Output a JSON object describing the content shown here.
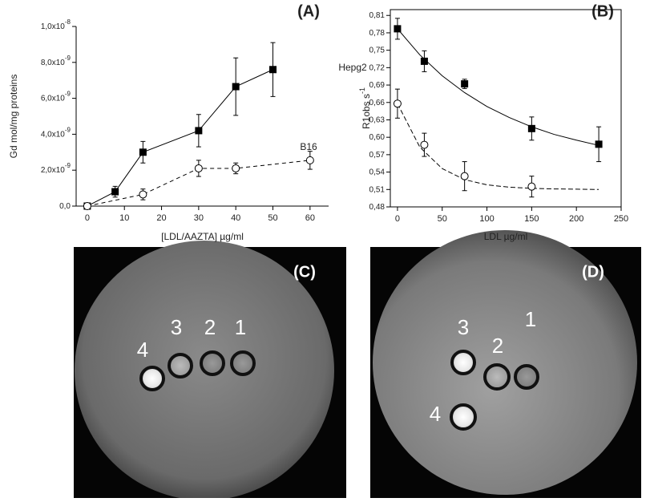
{
  "chart_data": [
    {
      "type": "line",
      "title": "(A)",
      "ylabel": "Gd mol/mg proteins",
      "xlabel": "[LDL/AAZTA] µg/ml",
      "xlim": [
        -3,
        65
      ],
      "xticks": [
        0,
        10,
        20,
        30,
        40,
        50,
        60
      ],
      "ylim": [
        0,
        1e-08
      ],
      "yticks": [
        {
          "value": 0,
          "label": "0,0"
        },
        {
          "value": 2e-09,
          "label": "2,0x10",
          "exponent": "-9"
        },
        {
          "value": 4e-09,
          "label": "4,0x10",
          "exponent": "-9"
        },
        {
          "value": 6e-09,
          "label": "6,0x10",
          "exponent": "-9"
        },
        {
          "value": 8e-09,
          "label": "8,0x10",
          "exponent": "-9"
        },
        {
          "value": 1e-08,
          "label": "1,0x10",
          "exponent": "-8"
        }
      ],
      "series": [
        {
          "name": "Hepg2",
          "color": "#000000",
          "marker": "square",
          "dash": false,
          "x": [
            0,
            7.5,
            15,
            30,
            40,
            50
          ],
          "values": [
            0,
            8e-10,
            3e-09,
            4.2e-09,
            6.65e-09,
            7.6e-09
          ],
          "errors": [
            0,
            3e-10,
            6e-10,
            9e-10,
            1.6e-09,
            1.5e-09
          ]
        },
        {
          "name": "B16",
          "color": "#000000",
          "marker": "circle",
          "dash": true,
          "x": [
            0,
            15,
            30,
            40,
            60
          ],
          "values": [
            0,
            6.5e-10,
            2.1e-09,
            2.1e-09,
            2.55e-09
          ],
          "errors": [
            0,
            3e-10,
            4.5e-10,
            3e-10,
            5e-10
          ]
        }
      ]
    },
    {
      "type": "scatter",
      "title": "(B)",
      "ylabel": "R1obs s",
      "ylabel_exponent": "-1",
      "xlabel": "LDL µg/ml",
      "xlim": [
        -8,
        250
      ],
      "xticks": [
        0,
        50,
        100,
        150,
        200,
        250
      ],
      "ylim": [
        0.48,
        0.82
      ],
      "yticks": [
        {
          "value": 0.48,
          "label": "0,48"
        },
        {
          "value": 0.51,
          "label": "0,51"
        },
        {
          "value": 0.54,
          "label": "0,54"
        },
        {
          "value": 0.57,
          "label": "0,57"
        },
        {
          "value": 0.6,
          "label": "0,60"
        },
        {
          "value": 0.63,
          "label": "0,63"
        },
        {
          "value": 0.66,
          "label": "0,66"
        },
        {
          "value": 0.69,
          "label": "0,69"
        },
        {
          "value": 0.72,
          "label": "0,72"
        },
        {
          "value": 0.75,
          "label": "0,75"
        },
        {
          "value": 0.78,
          "label": "0,78"
        },
        {
          "value": 0.81,
          "label": "0,81"
        }
      ],
      "series": [
        {
          "color": "#000000",
          "marker": "square",
          "dash": false,
          "x": [
            0,
            30,
            75,
            150,
            225
          ],
          "values": [
            0.787,
            0.731,
            0.692,
            0.615,
            0.588
          ],
          "errors": [
            0.018,
            0.018,
            0.008,
            0.02,
            0.03
          ],
          "fit": {
            "x": [
              0,
              25,
              50,
              75,
              100,
              125,
              150,
              175,
              200,
              225
            ],
            "values": [
              0.787,
              0.742,
              0.706,
              0.677,
              0.653,
              0.634,
              0.618,
              0.605,
              0.595,
              0.586
            ]
          }
        },
        {
          "color": "#000000",
          "marker": "circle",
          "dash": true,
          "x": [
            0,
            30,
            75,
            150
          ],
          "values": [
            0.658,
            0.587,
            0.533,
            0.515
          ],
          "errors": [
            0.025,
            0.02,
            0.025,
            0.018
          ],
          "fit": {
            "x": [
              0,
              25,
              50,
              75,
              100,
              125,
              150,
              175,
              200,
              225
            ],
            "values": [
              0.658,
              0.583,
              0.546,
              0.527,
              0.518,
              0.514,
              0.512,
              0.511,
              0.5105,
              0.51
            ]
          }
        }
      ]
    }
  ],
  "images": [
    {
      "title": "(C)",
      "vials": [
        "1",
        "2",
        "3",
        "4"
      ]
    },
    {
      "title": "(D)",
      "vials": [
        "1",
        "2",
        "3",
        "4"
      ]
    }
  ]
}
